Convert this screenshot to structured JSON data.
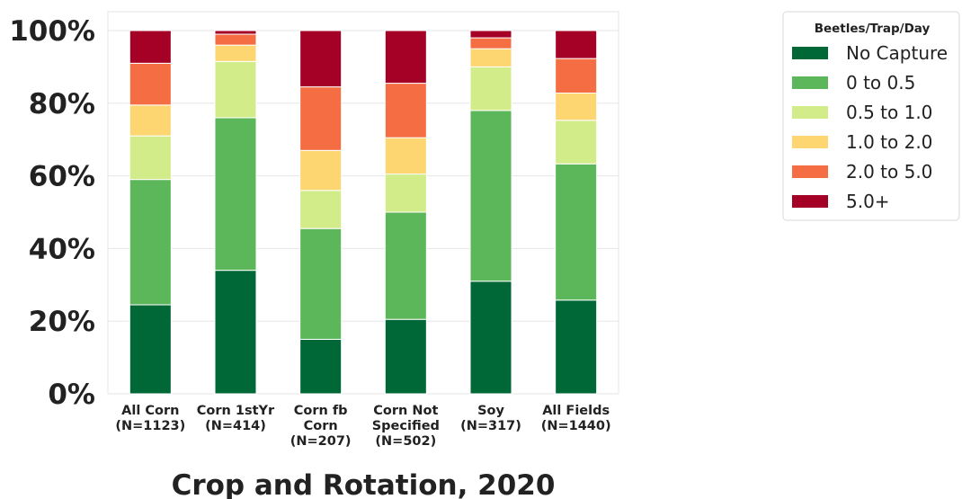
{
  "chart_data": {
    "type": "bar",
    "stacked": true,
    "xlabel": "Crop and Rotation, 2020",
    "ylabel": "",
    "ylim": [
      0,
      100
    ],
    "yticks": [
      "0%",
      "20%",
      "40%",
      "60%",
      "80%",
      "100%"
    ],
    "ytick_values": [
      0,
      20,
      40,
      60,
      80,
      100
    ],
    "grid": true,
    "legend": {
      "title": "Beetles/Trap/Day",
      "placement": "right"
    },
    "categories": [
      [
        "All Corn",
        "(N=1123)"
      ],
      [
        "Corn 1stYr",
        "(N=414)"
      ],
      [
        "Corn fb",
        "Corn",
        "(N=207)"
      ],
      [
        "Corn Not",
        "Specified",
        "(N=502)"
      ],
      [
        "Soy",
        "(N=317)"
      ],
      [
        "All Fields",
        "(N=1440)"
      ]
    ],
    "series": [
      {
        "name": "No Capture",
        "color": "#006837",
        "values": [
          24.5,
          34.0,
          15.0,
          20.5,
          31.0,
          25.8
        ]
      },
      {
        "name": "0 to 0.5",
        "color": "#5bb75a",
        "values": [
          34.5,
          42.0,
          30.5,
          29.5,
          47.0,
          37.5
        ]
      },
      {
        "name": "0.5 to 1.0",
        "color": "#d3ec8a",
        "values": [
          12.0,
          15.5,
          10.5,
          10.5,
          12.0,
          12.0
        ]
      },
      {
        "name": "1.0 to 2.0",
        "color": "#fdd672",
        "values": [
          8.5,
          4.5,
          11.0,
          10.0,
          5.0,
          7.5
        ]
      },
      {
        "name": "2.0 to 5.0",
        "color": "#f46d43",
        "values": [
          11.5,
          3.0,
          17.5,
          15.0,
          3.0,
          9.5
        ]
      },
      {
        "name": "5.0+",
        "color": "#a50026",
        "values": [
          9.0,
          1.0,
          15.5,
          14.5,
          2.0,
          7.7
        ]
      }
    ]
  }
}
